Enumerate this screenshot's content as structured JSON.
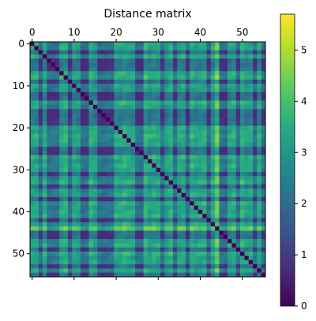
{
  "chart_data": {
    "type": "heatmap",
    "title": "Distance matrix",
    "xlabel": "",
    "ylabel": "",
    "n": 56,
    "x_ticks": [
      0,
      10,
      20,
      30,
      40,
      50
    ],
    "y_ticks": [
      0,
      10,
      20,
      30,
      40,
      50
    ],
    "colorbar": {
      "min": 0,
      "max": 5.7,
      "ticks": [
        0,
        1,
        2,
        3,
        4,
        5
      ]
    },
    "colormap": "viridis",
    "grid": false,
    "x_tick_position": "top",
    "diagonal": 0,
    "profile": [
      3.3,
      3.4,
      1.2,
      3.6,
      1.0,
      1.1,
      1.3,
      3.5,
      3.8,
      1.2,
      3.3,
      3.0,
      0.9,
      1.0,
      3.7,
      3.2,
      1.1,
      1.0,
      1.2,
      1.3,
      3.6,
      3.4,
      3.8,
      3.5,
      3.3,
      1.1,
      1.0,
      3.9,
      3.2,
      3.6,
      3.4,
      1.4,
      3.1,
      3.8,
      1.2,
      3.3,
      3.5,
      1.0,
      3.7,
      3.2,
      3.4,
      3.6,
      1.1,
      3.5,
      5.3,
      1.2,
      1.0,
      3.3,
      3.6,
      1.3,
      3.8,
      3.1,
      3.4,
      1.2,
      3.5,
      1.1
    ]
  }
}
